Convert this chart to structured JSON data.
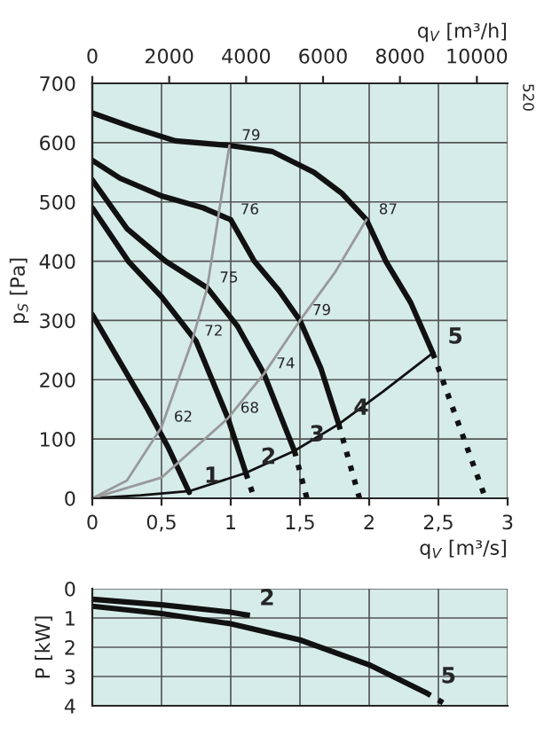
{
  "chart_data": [
    {
      "type": "line",
      "xlabel": "q$_{V}$ [m³/s]",
      "ylabel": "p$_{S}$ [Pa]",
      "x2label": "q$_{V}$ [m³/h]",
      "xlim": [
        0,
        3
      ],
      "xticks": [
        0,
        {
          "value": 0.5,
          "label": "0,5"
        },
        1,
        {
          "value": 1.5,
          "label": "1,5"
        },
        2,
        {
          "value": 2.5,
          "label": "2,5"
        },
        3
      ],
      "ylim": [
        0,
        700
      ],
      "yticks": [
        0,
        100,
        200,
        300,
        400,
        500,
        600,
        700
      ],
      "x2lim": [
        0,
        10800
      ],
      "x2ticks": [
        0,
        2000,
        4000,
        6000,
        8000,
        10000
      ],
      "grid": true,
      "legend": false,
      "marker": "none",
      "series": [
        {
          "name": "1",
          "color": "#111111",
          "x": [
            0,
            0.2,
            0.4,
            0.55,
            0.7
          ],
          "values": [
            310,
            230,
            150,
            85,
            10
          ]
        },
        {
          "name": "2",
          "color": "#111111",
          "x": [
            0,
            0.26,
            0.5,
            0.75,
            0.98,
            1.11
          ],
          "values": [
            490,
            400,
            340,
            265,
            135,
            42
          ]
        },
        {
          "color": "#111111",
          "line_style": "dotted",
          "x": [
            1.11,
            1.17
          ],
          "values": [
            42,
            0
          ]
        },
        {
          "name": "3",
          "color": "#111111",
          "x": [
            0,
            0.25,
            0.53,
            0.83,
            1.05,
            1.24,
            1.46
          ],
          "values": [
            537,
            455,
            400,
            355,
            290,
            210,
            80
          ]
        },
        {
          "color": "#111111",
          "line_style": "dotted",
          "x": [
            1.46,
            1.55
          ],
          "values": [
            80,
            0
          ]
        },
        {
          "name": "4",
          "color": "#111111",
          "x": [
            0,
            0.2,
            0.5,
            0.8,
            1.0,
            1.17,
            1.35,
            1.5,
            1.65,
            1.78
          ],
          "values": [
            570,
            540,
            510,
            490,
            470,
            400,
            350,
            300,
            220,
            125
          ]
        },
        {
          "color": "#111111",
          "line_style": "dotted",
          "x": [
            1.78,
            1.93
          ],
          "values": [
            125,
            0
          ]
        },
        {
          "name": "5",
          "color": "#111111",
          "x": [
            0,
            0.3,
            0.6,
            1.0,
            1.3,
            1.6,
            1.8,
            1.98,
            2.12,
            2.3,
            2.46
          ],
          "values": [
            650,
            625,
            603,
            595,
            585,
            550,
            515,
            470,
            400,
            330,
            245
          ]
        },
        {
          "color": "#111111",
          "line_style": "dotted",
          "x": [
            2.46,
            2.84
          ],
          "values": [
            245,
            0
          ]
        },
        {
          "color": "#111111",
          "x": [
            0,
            0.35,
            0.7,
            1.1,
            1.46,
            1.78,
            2.1,
            2.46
          ],
          "values": [
            0,
            5,
            12,
            42,
            80,
            125,
            180,
            245
          ]
        },
        {
          "color": "#999999",
          "x": [
            0,
            0.25,
            0.5,
            0.72,
            0.83,
            0.99
          ],
          "values": [
            0,
            30,
            120,
            265,
            355,
            595
          ]
        },
        {
          "color": "#999999",
          "x": [
            0,
            0.5,
            0.98,
            1.24,
            1.5,
            1.75,
            1.98
          ],
          "values": [
            0,
            35,
            135,
            210,
            300,
            380,
            470
          ]
        }
      ],
      "annotations": [
        {
          "text": "62",
          "x": 0.5,
          "y": 120
        },
        {
          "text": "68",
          "x": 0.98,
          "y": 135
        },
        {
          "text": "72",
          "x": 0.72,
          "y": 265
        },
        {
          "text": "74",
          "x": 1.24,
          "y": 210
        },
        {
          "text": "75",
          "x": 0.83,
          "y": 355
        },
        {
          "text": "79",
          "x": 1.5,
          "y": 300
        },
        {
          "text": "76",
          "x": 0.98,
          "y": 470
        },
        {
          "text": "79",
          "x": 0.99,
          "y": 595
        },
        {
          "text": "87",
          "x": 1.98,
          "y": 470
        },
        "520"
      ]
    },
    {
      "type": "line",
      "ylabel": "P [kW]",
      "xlim": [
        0,
        3
      ],
      "xticks": [
        0,
        0.5,
        1,
        1.5,
        2,
        2.5,
        3
      ],
      "ylim": [
        4,
        0
      ],
      "yticks": [
        0,
        1,
        2,
        3,
        4
      ],
      "tick_labels": "y",
      "grid": true,
      "legend": false,
      "marker": "none",
      "series": [
        {
          "name": "2",
          "color": "#111111",
          "x": [
            0,
            0.5,
            1.0,
            1.1
          ],
          "values": [
            0.36,
            0.55,
            0.8,
            0.89
          ]
        },
        {
          "color": "#111111",
          "line_style": "dotted",
          "x": [
            1.1,
            1.18
          ],
          "values": [
            0.89,
            0.93
          ]
        },
        {
          "name": "5",
          "color": "#111111",
          "x": [
            0,
            0.5,
            1.0,
            1.5,
            2.0,
            2.41
          ],
          "values": [
            0.6,
            0.85,
            1.2,
            1.75,
            2.6,
            3.55
          ]
        },
        {
          "color": "#111111",
          "line_style": "dotted",
          "x": [
            2.41,
            2.57
          ],
          "values": [
            3.55,
            4
          ]
        }
      ]
    }
  ]
}
